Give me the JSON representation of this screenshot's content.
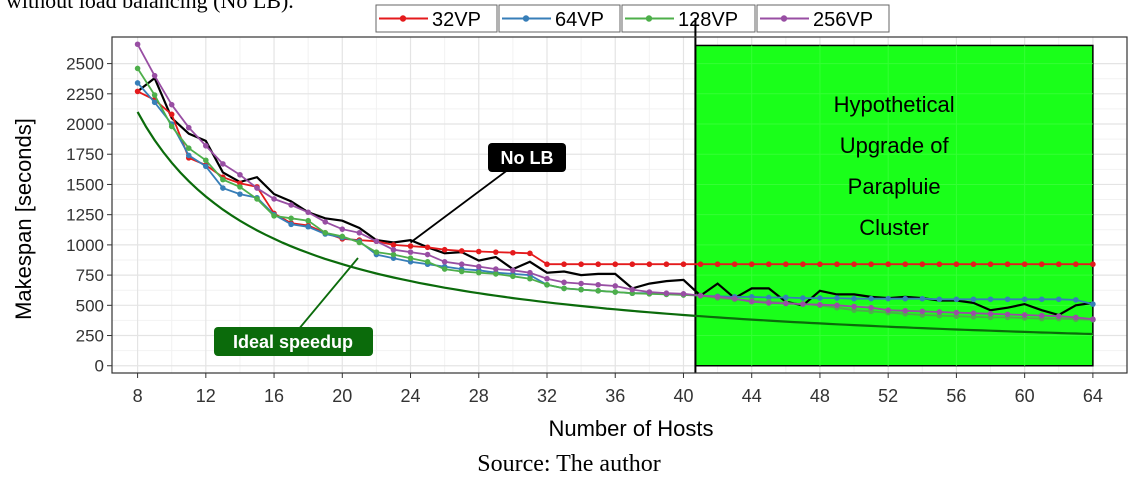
{
  "caption_top": "without load balancing (No LB).",
  "source_caption": "Source: The author",
  "colors": {
    "32VP": "#e41a1c",
    "64VP": "#377eb8",
    "128VP": "#4daf4a",
    "256VP": "#984ea3",
    "no_lb": "#000000",
    "ideal": "#0b6b0b",
    "highlight_fill": "#1aff1a",
    "grid": "#ebebeb"
  },
  "chart_data": {
    "type": "line",
    "xlabel": "Number of Hosts",
    "ylabel": "Makespan [seconds]",
    "xlim": [
      6.5,
      66
    ],
    "ylim": [
      -60,
      2720
    ],
    "x_ticks": [
      8,
      12,
      16,
      20,
      24,
      28,
      32,
      36,
      40,
      44,
      48,
      52,
      56,
      60,
      64
    ],
    "y_ticks": [
      0,
      250,
      500,
      750,
      1000,
      1250,
      1500,
      1750,
      2000,
      2250,
      2500
    ],
    "grid": true,
    "legend_position": "top",
    "legend": [
      "32VP",
      "64VP",
      "128VP",
      "256VP"
    ],
    "series": [
      {
        "name": "32VP",
        "marker": true,
        "x": [
          8,
          9,
          10,
          11,
          12,
          13,
          14,
          15,
          16,
          17,
          18,
          19,
          20,
          21,
          22,
          23,
          24,
          25,
          26,
          27,
          28,
          29,
          30,
          31,
          32,
          33,
          34,
          35,
          36,
          37,
          38,
          39,
          40,
          41,
          42,
          43,
          44,
          45,
          46,
          47,
          48,
          49,
          50,
          51,
          52,
          53,
          54,
          55,
          56,
          57,
          58,
          59,
          60,
          61,
          62,
          63,
          64
        ],
        "values": [
          2270,
          2200,
          2080,
          1720,
          1660,
          1560,
          1510,
          1480,
          1260,
          1180,
          1160,
          1100,
          1050,
          1040,
          1030,
          1000,
          990,
          980,
          960,
          950,
          945,
          940,
          935,
          930,
          840,
          840,
          840,
          840,
          840,
          840,
          840,
          840,
          840,
          840,
          840,
          840,
          840,
          840,
          840,
          840,
          840,
          840,
          840,
          840,
          840,
          840,
          840,
          840,
          840,
          840,
          840,
          840,
          840,
          840,
          840,
          840,
          840
        ]
      },
      {
        "name": "64VP",
        "marker": true,
        "x": [
          8,
          9,
          10,
          11,
          12,
          13,
          14,
          15,
          16,
          17,
          18,
          19,
          20,
          21,
          22,
          23,
          24,
          25,
          26,
          27,
          28,
          29,
          30,
          31,
          32,
          33,
          34,
          35,
          36,
          37,
          38,
          39,
          40,
          41,
          42,
          43,
          44,
          45,
          46,
          47,
          48,
          49,
          50,
          51,
          52,
          53,
          54,
          55,
          56,
          57,
          58,
          59,
          60,
          61,
          62,
          63,
          64
        ],
        "values": [
          2340,
          2180,
          2000,
          1740,
          1650,
          1470,
          1420,
          1390,
          1250,
          1170,
          1150,
          1090,
          1060,
          1030,
          920,
          890,
          860,
          840,
          820,
          800,
          790,
          770,
          760,
          750,
          670,
          640,
          630,
          620,
          610,
          600,
          600,
          595,
          590,
          580,
          575,
          570,
          570,
          565,
          565,
          560,
          560,
          560,
          555,
          555,
          555,
          555,
          555,
          550,
          550,
          550,
          550,
          550,
          550,
          550,
          550,
          545,
          510
        ]
      },
      {
        "name": "128VP",
        "marker": true,
        "x": [
          8,
          9,
          10,
          11,
          12,
          13,
          14,
          15,
          16,
          17,
          18,
          19,
          20,
          21,
          22,
          23,
          24,
          25,
          26,
          27,
          28,
          29,
          30,
          31,
          32,
          33,
          34,
          35,
          36,
          37,
          38,
          39,
          40,
          41,
          42,
          43,
          44,
          45,
          46,
          47,
          48,
          49,
          50,
          51,
          52,
          53,
          54,
          55,
          56,
          57,
          58,
          59,
          60,
          61,
          62,
          63,
          64
        ],
        "values": [
          2460,
          2240,
          1980,
          1800,
          1700,
          1540,
          1480,
          1380,
          1240,
          1220,
          1200,
          1100,
          1070,
          1020,
          940,
          920,
          890,
          860,
          800,
          780,
          770,
          760,
          740,
          720,
          670,
          640,
          630,
          620,
          610,
          600,
          595,
          590,
          585,
          580,
          560,
          550,
          540,
          530,
          520,
          510,
          500,
          480,
          460,
          450,
          440,
          430,
          420,
          415,
          410,
          405,
          400,
          400,
          395,
          390,
          390,
          385,
          380
        ]
      },
      {
        "name": "256VP",
        "marker": true,
        "x": [
          8,
          9,
          10,
          11,
          12,
          13,
          14,
          15,
          16,
          17,
          18,
          19,
          20,
          21,
          22,
          23,
          24,
          25,
          26,
          27,
          28,
          29,
          30,
          31,
          32,
          33,
          34,
          35,
          36,
          37,
          38,
          39,
          40,
          41,
          42,
          43,
          44,
          45,
          46,
          47,
          48,
          49,
          50,
          51,
          52,
          53,
          54,
          55,
          56,
          57,
          58,
          59,
          60,
          61,
          62,
          63,
          64
        ],
        "values": [
          2660,
          2400,
          2160,
          1970,
          1820,
          1670,
          1580,
          1470,
          1380,
          1330,
          1270,
          1190,
          1130,
          1100,
          1030,
          960,
          940,
          920,
          860,
          840,
          820,
          800,
          790,
          770,
          720,
          690,
          680,
          670,
          660,
          630,
          610,
          600,
          595,
          580,
          570,
          555,
          530,
          520,
          515,
          510,
          505,
          500,
          490,
          480,
          460,
          455,
          450,
          445,
          440,
          435,
          430,
          425,
          420,
          415,
          410,
          400,
          385
        ]
      },
      {
        "name": "No LB",
        "marker": false,
        "x": [
          8,
          9,
          10,
          11,
          12,
          13,
          14,
          15,
          16,
          17,
          18,
          19,
          20,
          21,
          22,
          23,
          24,
          25,
          26,
          27,
          28,
          29,
          30,
          31,
          32,
          33,
          34,
          35,
          36,
          37,
          38,
          39,
          40,
          41,
          42,
          43,
          44,
          45,
          46,
          47,
          48,
          49,
          50,
          51,
          52,
          53,
          54,
          55,
          56,
          57,
          58,
          59,
          60,
          61,
          62,
          63,
          64
        ],
        "values": [
          2270,
          2380,
          2050,
          1920,
          1860,
          1600,
          1520,
          1560,
          1420,
          1360,
          1270,
          1220,
          1200,
          1140,
          1040,
          1020,
          1040,
          980,
          930,
          940,
          870,
          900,
          800,
          860,
          770,
          780,
          750,
          760,
          760,
          640,
          680,
          700,
          710,
          580,
          680,
          560,
          640,
          640,
          530,
          500,
          620,
          590,
          590,
          570,
          560,
          570,
          560,
          540,
          540,
          520,
          460,
          480,
          510,
          460,
          420,
          500,
          520
        ]
      },
      {
        "name": "Ideal speedup",
        "marker": false,
        "ideal_base": 2100,
        "ideal_base_hosts": 8
      }
    ],
    "annotations": [
      {
        "text": "No LB",
        "target_x": 24,
        "target_y": 1020
      },
      {
        "text": "Ideal speedup",
        "target_x": 22,
        "target_y": 900
      }
    ],
    "highlight_region": {
      "x_start": 40.7,
      "x_end": 64,
      "y_top": 2650,
      "label_lines": [
        "Hypothetical",
        "Upgrade of",
        "Parapluie",
        "Cluster"
      ]
    },
    "vertical_line_x": 40.7
  }
}
